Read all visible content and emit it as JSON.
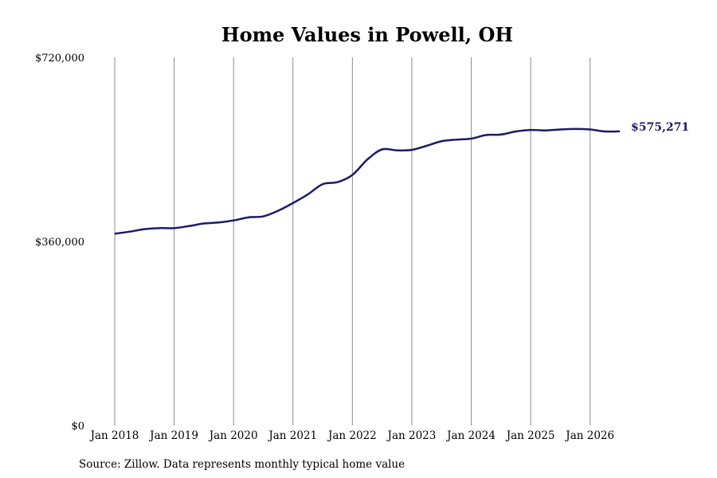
{
  "chart_data": {
    "type": "line",
    "title": "Home Values in Powell, OH",
    "ylim": [
      0,
      720000
    ],
    "yticks": [
      {
        "value": 0,
        "label": "$0"
      },
      {
        "value": 360000,
        "label": "$360,000"
      },
      {
        "value": 720000,
        "label": "$720,000"
      }
    ],
    "xticks": [
      {
        "date": "2018-01",
        "label": "Jan 2018"
      },
      {
        "date": "2019-01",
        "label": "Jan 2019"
      },
      {
        "date": "2020-01",
        "label": "Jan 2020"
      },
      {
        "date": "2021-01",
        "label": "Jan 2021"
      },
      {
        "date": "2022-01",
        "label": "Jan 2022"
      },
      {
        "date": "2023-01",
        "label": "Jan 2023"
      },
      {
        "date": "2024-01",
        "label": "Jan 2024"
      },
      {
        "date": "2025-01",
        "label": "Jan 2025"
      },
      {
        "date": "2026-01",
        "label": "Jan 2026"
      }
    ],
    "xlim": [
      "2018-01",
      "2026-07"
    ],
    "grid": {
      "vertical": true,
      "horizontal": false
    },
    "series": [
      {
        "color": "#1a1a6b",
        "end_label": "$575,271",
        "points": [
          [
            "2018-01",
            375000
          ],
          [
            "2018-04",
            379000
          ],
          [
            "2018-07",
            384000
          ],
          [
            "2018-10",
            386000
          ],
          [
            "2019-01",
            386000
          ],
          [
            "2019-04",
            390000
          ],
          [
            "2019-07",
            395000
          ],
          [
            "2019-10",
            397000
          ],
          [
            "2020-01",
            401000
          ],
          [
            "2020-04",
            407000
          ],
          [
            "2020-07",
            409000
          ],
          [
            "2020-10",
            420000
          ],
          [
            "2021-01",
            435000
          ],
          [
            "2021-04",
            452000
          ],
          [
            "2021-07",
            472000
          ],
          [
            "2021-10",
            476000
          ],
          [
            "2022-01",
            490000
          ],
          [
            "2022-04",
            520000
          ],
          [
            "2022-07",
            540000
          ],
          [
            "2022-10",
            538000
          ],
          [
            "2023-01",
            539000
          ],
          [
            "2023-04",
            547000
          ],
          [
            "2023-07",
            556000
          ],
          [
            "2023-10",
            559000
          ],
          [
            "2024-01",
            561000
          ],
          [
            "2024-04",
            568000
          ],
          [
            "2024-07",
            569000
          ],
          [
            "2024-10",
            575000
          ],
          [
            "2025-01",
            578000
          ],
          [
            "2025-04",
            577000
          ],
          [
            "2025-07",
            579000
          ],
          [
            "2025-10",
            580000
          ],
          [
            "2026-01",
            579000
          ],
          [
            "2026-04",
            575000
          ],
          [
            "2026-07",
            575271
          ]
        ]
      }
    ]
  },
  "footer": {
    "source": "Source: Zillow. Data represents monthly typical home value"
  }
}
